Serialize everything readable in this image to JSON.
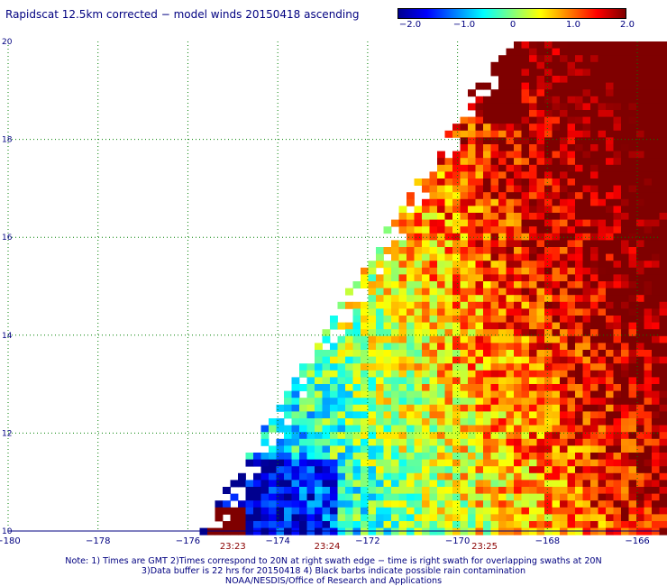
{
  "title": "Rapidscat 12.5km corrected − model winds 20150418 ascending",
  "colorbar": {
    "ticks": [
      "−2.0",
      "−1.0",
      "0",
      "1.0",
      "2.0"
    ],
    "tick_values": [
      -2.0,
      -1.0,
      0.0,
      1.0,
      2.0
    ],
    "range": [
      -2.0,
      2.0
    ],
    "colors": [
      "#00008f",
      "#0000ff",
      "#007fff",
      "#00ffff",
      "#7fff7f",
      "#ffff00",
      "#ff7f00",
      "#ff0000",
      "#7f0000"
    ]
  },
  "map": {
    "lon_labels": [
      "−180",
      "−178",
      "−176",
      "−174",
      "−172",
      "−170",
      "−168",
      "−166"
    ],
    "lon_values": [
      -180,
      -178,
      -176,
      -174,
      -172,
      -170,
      -168,
      -166
    ],
    "lat_labels": [
      "10",
      "12",
      "14",
      "16",
      "18",
      "20"
    ],
    "lat_values": [
      10,
      12,
      14,
      16,
      18,
      20
    ],
    "lon_range": [
      -180,
      -165.5
    ],
    "lat_range": [
      10,
      20
    ],
    "grid": "dotted",
    "grid_color": "#008000",
    "time_labels": [
      "23:23",
      "23:24",
      "23:25"
    ],
    "time_lons": [
      -175.0,
      -172.9,
      -169.4
    ],
    "time_color": "#8b0000"
  },
  "notes": {
    "line1": "Note: 1) Times are GMT 2)Times correspond to 20N at right swath edge − time is right swath for overlapping swaths at 20N",
    "line2": "3)Data buffer is 22 hrs for 20150418 4) Black barbs indicate possible rain contamination",
    "line3": "NOAA/NESDIS/Office of Research and Applications"
  }
}
